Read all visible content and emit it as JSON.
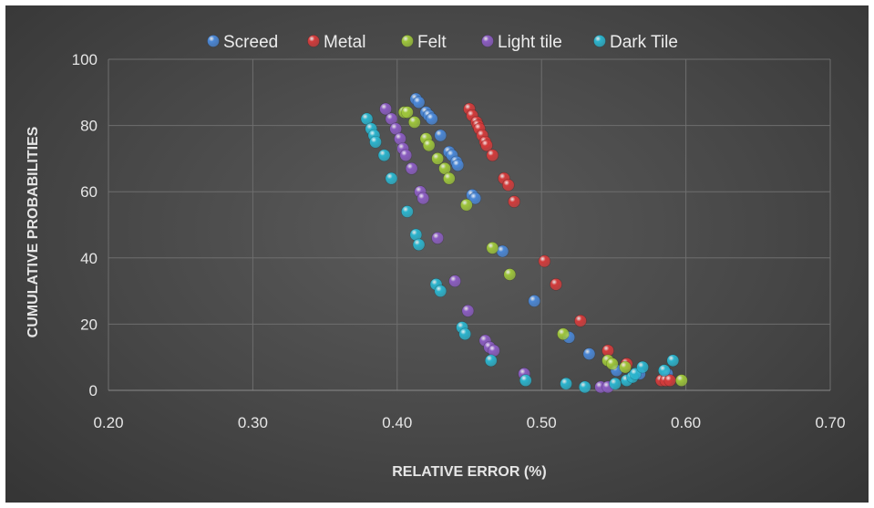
{
  "chart_data": {
    "type": "scatter",
    "title": "",
    "xlabel": "RELATIVE ERROR (%)",
    "ylabel": "CUMULATIVE PROBABILITIES",
    "xlim": [
      0.2,
      0.7
    ],
    "ylim": [
      0,
      100
    ],
    "x_ticks": [
      "0.20",
      "0.30",
      "0.40",
      "0.50",
      "0.60",
      "0.70"
    ],
    "y_ticks": [
      "0",
      "20",
      "40",
      "60",
      "80",
      "100"
    ],
    "grid": true,
    "legend_position": "top",
    "series": [
      {
        "name": "Screed",
        "color": "#4a86d4",
        "points": [
          [
            0.413,
            88
          ],
          [
            0.415,
            87
          ],
          [
            0.42,
            84
          ],
          [
            0.422,
            83
          ],
          [
            0.424,
            82
          ],
          [
            0.43,
            77
          ],
          [
            0.436,
            72
          ],
          [
            0.438,
            71
          ],
          [
            0.441,
            69
          ],
          [
            0.442,
            68
          ],
          [
            0.452,
            59
          ],
          [
            0.454,
            58
          ],
          [
            0.473,
            42
          ],
          [
            0.495,
            27
          ],
          [
            0.519,
            16
          ],
          [
            0.533,
            11
          ],
          [
            0.552,
            6
          ],
          [
            0.568,
            5
          ],
          [
            0.587,
            5
          ]
        ]
      },
      {
        "name": "Metal",
        "color": "#d23b3b",
        "points": [
          [
            0.45,
            85
          ],
          [
            0.452,
            83
          ],
          [
            0.455,
            81
          ],
          [
            0.456,
            80
          ],
          [
            0.457,
            79
          ],
          [
            0.459,
            77
          ],
          [
            0.461,
            75
          ],
          [
            0.462,
            74
          ],
          [
            0.466,
            71
          ],
          [
            0.474,
            64
          ],
          [
            0.477,
            62
          ],
          [
            0.481,
            57
          ],
          [
            0.502,
            39
          ],
          [
            0.51,
            32
          ],
          [
            0.527,
            21
          ],
          [
            0.546,
            12
          ],
          [
            0.559,
            8
          ],
          [
            0.583,
            3
          ],
          [
            0.586,
            3
          ],
          [
            0.589,
            3
          ]
        ]
      },
      {
        "name": "Felt",
        "color": "#9dc43b",
        "points": [
          [
            0.405,
            84
          ],
          [
            0.407,
            84
          ],
          [
            0.412,
            81
          ],
          [
            0.42,
            76
          ],
          [
            0.422,
            74
          ],
          [
            0.428,
            70
          ],
          [
            0.433,
            67
          ],
          [
            0.436,
            64
          ],
          [
            0.448,
            56
          ],
          [
            0.466,
            43
          ],
          [
            0.478,
            35
          ],
          [
            0.515,
            17
          ],
          [
            0.546,
            9
          ],
          [
            0.549,
            8
          ],
          [
            0.558,
            7
          ],
          [
            0.597,
            3
          ]
        ]
      },
      {
        "name": "Light tile",
        "color": "#8a5cc0",
        "points": [
          [
            0.392,
            85
          ],
          [
            0.396,
            82
          ],
          [
            0.399,
            79
          ],
          [
            0.402,
            76
          ],
          [
            0.404,
            73
          ],
          [
            0.406,
            71
          ],
          [
            0.41,
            67
          ],
          [
            0.416,
            60
          ],
          [
            0.418,
            58
          ],
          [
            0.428,
            46
          ],
          [
            0.44,
            33
          ],
          [
            0.449,
            24
          ],
          [
            0.461,
            15
          ],
          [
            0.464,
            13
          ],
          [
            0.467,
            12
          ],
          [
            0.488,
            5
          ],
          [
            0.541,
            1
          ],
          [
            0.546,
            1
          ]
        ]
      },
      {
        "name": "Dark Tile",
        "color": "#2bb3cc",
        "points": [
          [
            0.379,
            82
          ],
          [
            0.382,
            79
          ],
          [
            0.384,
            77
          ],
          [
            0.385,
            75
          ],
          [
            0.391,
            71
          ],
          [
            0.396,
            64
          ],
          [
            0.407,
            54
          ],
          [
            0.413,
            47
          ],
          [
            0.415,
            44
          ],
          [
            0.427,
            32
          ],
          [
            0.43,
            30
          ],
          [
            0.445,
            19
          ],
          [
            0.447,
            17
          ],
          [
            0.465,
            9
          ],
          [
            0.489,
            3
          ],
          [
            0.517,
            2
          ],
          [
            0.53,
            1
          ],
          [
            0.551,
            2
          ],
          [
            0.559,
            3
          ],
          [
            0.563,
            4
          ],
          [
            0.565,
            5
          ],
          [
            0.57,
            7
          ],
          [
            0.585,
            6
          ],
          [
            0.591,
            9
          ]
        ]
      }
    ]
  }
}
